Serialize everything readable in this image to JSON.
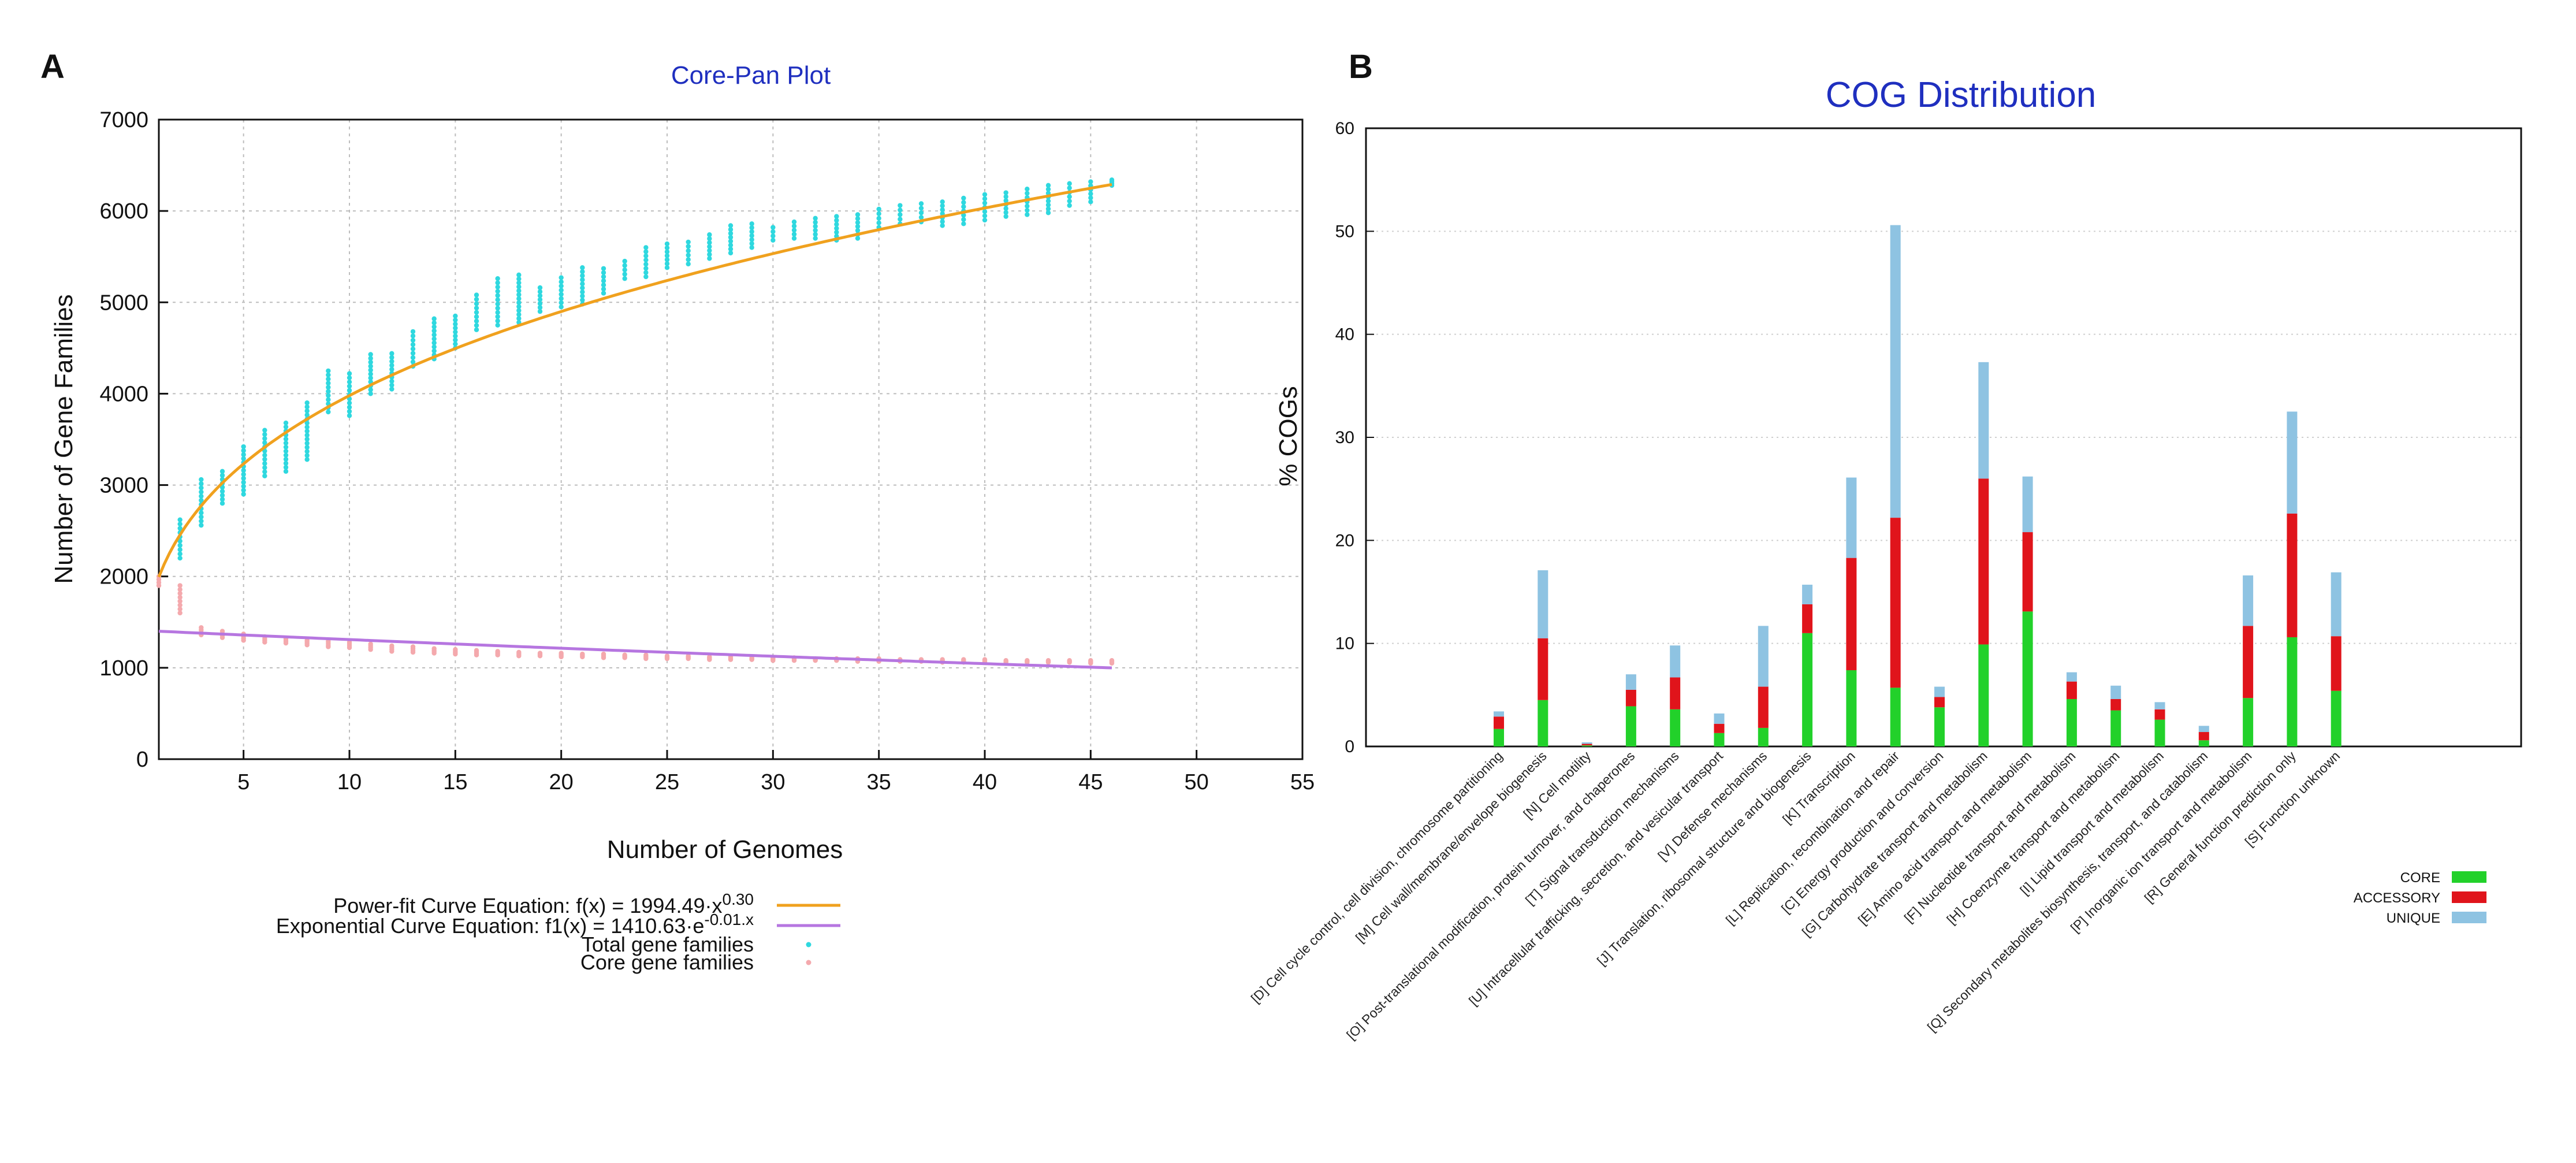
{
  "panels": {
    "a_letter": "A",
    "b_letter": "B"
  },
  "chart_data": [
    {
      "id": "core-pan",
      "type": "scatter",
      "title": "Core-Pan Plot",
      "xlabel": "Number of Genomes",
      "ylabel": "Number of Gene Families",
      "xlim": [
        1,
        55
      ],
      "ylim": [
        0,
        7000
      ],
      "xticks": [
        5,
        10,
        15,
        20,
        25,
        30,
        35,
        40,
        45,
        50,
        55
      ],
      "yticks": [
        0,
        1000,
        2000,
        3000,
        4000,
        5000,
        6000,
        7000
      ],
      "grid": true,
      "title_color": "#1f2fbf",
      "series": [
        {
          "name": "Total gene families",
          "kind": "scatter",
          "color": "#2fd8df",
          "points": [
            {
              "x": 2,
              "min": 2200,
              "max": 2620
            },
            {
              "x": 3,
              "min": 2560,
              "max": 3060
            },
            {
              "x": 4,
              "min": 2800,
              "max": 3150
            },
            {
              "x": 5,
              "min": 2900,
              "max": 3420
            },
            {
              "x": 6,
              "min": 3100,
              "max": 3600
            },
            {
              "x": 7,
              "min": 3150,
              "max": 3680
            },
            {
              "x": 8,
              "min": 3280,
              "max": 3900
            },
            {
              "x": 9,
              "min": 3800,
              "max": 4250
            },
            {
              "x": 10,
              "min": 3760,
              "max": 4220
            },
            {
              "x": 11,
              "min": 4000,
              "max": 4430
            },
            {
              "x": 12,
              "min": 4050,
              "max": 4440
            },
            {
              "x": 13,
              "min": 4300,
              "max": 4680
            },
            {
              "x": 14,
              "min": 4380,
              "max": 4820
            },
            {
              "x": 15,
              "min": 4500,
              "max": 4850
            },
            {
              "x": 16,
              "min": 4700,
              "max": 5080
            },
            {
              "x": 17,
              "min": 4750,
              "max": 5260
            },
            {
              "x": 18,
              "min": 4780,
              "max": 5300
            },
            {
              "x": 19,
              "min": 4900,
              "max": 5160
            },
            {
              "x": 20,
              "min": 4950,
              "max": 5270
            },
            {
              "x": 21,
              "min": 4980,
              "max": 5380
            },
            {
              "x": 22,
              "min": 5100,
              "max": 5370
            },
            {
              "x": 23,
              "min": 5260,
              "max": 5450
            },
            {
              "x": 24,
              "min": 5280,
              "max": 5600
            },
            {
              "x": 25,
              "min": 5380,
              "max": 5640
            },
            {
              "x": 26,
              "min": 5420,
              "max": 5660
            },
            {
              "x": 27,
              "min": 5480,
              "max": 5740
            },
            {
              "x": 28,
              "min": 5540,
              "max": 5840
            },
            {
              "x": 29,
              "min": 5600,
              "max": 5860
            },
            {
              "x": 30,
              "min": 5680,
              "max": 5820
            },
            {
              "x": 31,
              "min": 5700,
              "max": 5880
            },
            {
              "x": 32,
              "min": 5700,
              "max": 5920
            },
            {
              "x": 33,
              "min": 5680,
              "max": 5940
            },
            {
              "x": 34,
              "min": 5700,
              "max": 5960
            },
            {
              "x": 35,
              "min": 5820,
              "max": 6020
            },
            {
              "x": 36,
              "min": 5860,
              "max": 6060
            },
            {
              "x": 37,
              "min": 5880,
              "max": 6080
            },
            {
              "x": 38,
              "min": 5840,
              "max": 6100
            },
            {
              "x": 39,
              "min": 5860,
              "max": 6140
            },
            {
              "x": 40,
              "min": 5900,
              "max": 6180
            },
            {
              "x": 41,
              "min": 5940,
              "max": 6200
            },
            {
              "x": 42,
              "min": 5960,
              "max": 6240
            },
            {
              "x": 43,
              "min": 5980,
              "max": 6280
            },
            {
              "x": 44,
              "min": 6060,
              "max": 6300
            },
            {
              "x": 45,
              "min": 6100,
              "max": 6320
            },
            {
              "x": 46,
              "min": 6280,
              "max": 6340
            }
          ]
        },
        {
          "name": "Core gene families",
          "kind": "scatter",
          "color": "#f4a9ad",
          "points": [
            {
              "x": 1,
              "min": 1900,
              "max": 2000
            },
            {
              "x": 2,
              "min": 1600,
              "max": 1900
            },
            {
              "x": 3,
              "min": 1360,
              "max": 1440
            },
            {
              "x": 4,
              "min": 1330,
              "max": 1400
            },
            {
              "x": 5,
              "min": 1300,
              "max": 1370
            },
            {
              "x": 6,
              "min": 1280,
              "max": 1340
            },
            {
              "x": 7,
              "min": 1270,
              "max": 1320
            },
            {
              "x": 8,
              "min": 1250,
              "max": 1300
            },
            {
              "x": 9,
              "min": 1230,
              "max": 1290
            },
            {
              "x": 10,
              "min": 1220,
              "max": 1280
            },
            {
              "x": 11,
              "min": 1200,
              "max": 1260
            },
            {
              "x": 12,
              "min": 1180,
              "max": 1240
            },
            {
              "x": 13,
              "min": 1170,
              "max": 1230
            },
            {
              "x": 14,
              "min": 1160,
              "max": 1210
            },
            {
              "x": 15,
              "min": 1150,
              "max": 1200
            },
            {
              "x": 16,
              "min": 1140,
              "max": 1190
            },
            {
              "x": 17,
              "min": 1140,
              "max": 1180
            },
            {
              "x": 18,
              "min": 1130,
              "max": 1170
            },
            {
              "x": 19,
              "min": 1130,
              "max": 1160
            },
            {
              "x": 20,
              "min": 1120,
              "max": 1160
            },
            {
              "x": 21,
              "min": 1120,
              "max": 1150
            },
            {
              "x": 22,
              "min": 1110,
              "max": 1150
            },
            {
              "x": 23,
              "min": 1110,
              "max": 1140
            },
            {
              "x": 24,
              "min": 1100,
              "max": 1140
            },
            {
              "x": 25,
              "min": 1100,
              "max": 1130
            },
            {
              "x": 26,
              "min": 1100,
              "max": 1130
            },
            {
              "x": 27,
              "min": 1090,
              "max": 1120
            },
            {
              "x": 28,
              "min": 1090,
              "max": 1120
            },
            {
              "x": 29,
              "min": 1090,
              "max": 1110
            },
            {
              "x": 30,
              "min": 1080,
              "max": 1110
            },
            {
              "x": 31,
              "min": 1080,
              "max": 1110
            },
            {
              "x": 32,
              "min": 1080,
              "max": 1100
            },
            {
              "x": 33,
              "min": 1080,
              "max": 1100
            },
            {
              "x": 34,
              "min": 1070,
              "max": 1100
            },
            {
              "x": 35,
              "min": 1070,
              "max": 1100
            },
            {
              "x": 36,
              "min": 1070,
              "max": 1090
            },
            {
              "x": 37,
              "min": 1070,
              "max": 1090
            },
            {
              "x": 38,
              "min": 1060,
              "max": 1090
            },
            {
              "x": 39,
              "min": 1060,
              "max": 1090
            },
            {
              "x": 40,
              "min": 1060,
              "max": 1090
            },
            {
              "x": 41,
              "min": 1060,
              "max": 1080
            },
            {
              "x": 42,
              "min": 1060,
              "max": 1080
            },
            {
              "x": 43,
              "min": 1060,
              "max": 1080
            },
            {
              "x": 44,
              "min": 1060,
              "max": 1080
            },
            {
              "x": 45,
              "min": 1050,
              "max": 1080
            },
            {
              "x": 46,
              "min": 1050,
              "max": 1080
            }
          ]
        },
        {
          "name": "Power-fit curve",
          "kind": "curve",
          "color": "#f0a11e",
          "model": "power",
          "a": 1994.49,
          "b": 0.3,
          "x_range": [
            1,
            46
          ]
        },
        {
          "name": "Exponential curve",
          "kind": "curve",
          "color": "#b676e0",
          "model": "exponential",
          "a": 1410.63,
          "b": -0.0075,
          "x_range": [
            1,
            46
          ]
        }
      ],
      "legend": {
        "placement": "bottom-left",
        "entries": [
          {
            "prefix": "Power-fit Curve Equation: f(x) = 1994.49·x",
            "sup": "0.30",
            "symbol": "line",
            "color": "#f0a11e"
          },
          {
            "prefix": "Exponential Curve Equation:   f1(x) = 1410.63·e",
            "sup": "-0.01.x",
            "symbol": "line",
            "color": "#b676e0"
          },
          {
            "prefix": "Total gene families",
            "sup": "",
            "symbol": "dot",
            "color": "#2fd8df"
          },
          {
            "prefix": "Core gene families",
            "sup": "",
            "symbol": "dot",
            "color": "#f4a9ad"
          }
        ]
      }
    },
    {
      "id": "cog-distribution",
      "type": "bar",
      "stacked": true,
      "title": "COG Distribution",
      "title_color": "#1f2fbf",
      "xlabel": "",
      "ylabel": "% COGs",
      "ylim": [
        0,
        60
      ],
      "yticks": [
        0,
        10,
        20,
        30,
        40,
        50,
        60
      ],
      "grid": true,
      "categories": [
        "[D] Cell cycle control, cell division, chromosome partitioning",
        "[M] Cell wall/membrane/envelope biogenesis",
        "[N] Cell motility",
        "[O] Post-translational modification, protein turnover, and chaperones",
        "[T] Signal transduction mechanisms",
        "[U] Intracellular trafficking, secretion, and vesicular transport",
        "[V] Defense mechanisms",
        "[J] Translation, ribosomal structure and biogenesis",
        "[K] Transcription",
        "[L] Replication, recombination and repair",
        "[C] Energy production and conversion",
        "[G] Carbohydrate transport and metabolism",
        "[E] Amino acid transport and metabolism",
        "[F] Nucleotide transport and metabolism",
        "[H] Coenzyme transport and metabolism",
        "[I] Lipid transport and metabolism",
        "[Q] Secondary metabolites biosynthesis, transport, and catabolism",
        "[P] Inorganic ion transport and metabolism",
        "[R] General function prediction only",
        "[S] Function unknown"
      ],
      "series": [
        {
          "name": "CORE",
          "color": "#22d12a",
          "values": [
            1.7,
            4.5,
            0.1,
            3.9,
            3.6,
            1.3,
            1.8,
            11.0,
            7.4,
            5.7,
            3.8,
            9.9,
            13.1,
            4.6,
            3.5,
            2.6,
            0.6,
            4.7,
            10.6,
            5.4
          ]
        },
        {
          "name": "ACCESSORY",
          "color": "#e0141b",
          "values": [
            1.2,
            6.0,
            0.15,
            1.6,
            3.1,
            0.9,
            4.0,
            2.8,
            10.9,
            16.5,
            1.0,
            16.1,
            7.7,
            1.7,
            1.1,
            1.0,
            0.8,
            7.0,
            12.0,
            5.3
          ]
        },
        {
          "name": "UNIQUE",
          "color": "#8ec3e2",
          "values": [
            0.5,
            6.6,
            0.15,
            1.5,
            3.1,
            1.0,
            5.9,
            1.9,
            7.8,
            28.4,
            1.0,
            11.3,
            5.4,
            0.9,
            1.3,
            0.7,
            0.6,
            4.9,
            9.9,
            6.2
          ]
        }
      ],
      "legend": {
        "placement": "bottom-right"
      }
    }
  ]
}
